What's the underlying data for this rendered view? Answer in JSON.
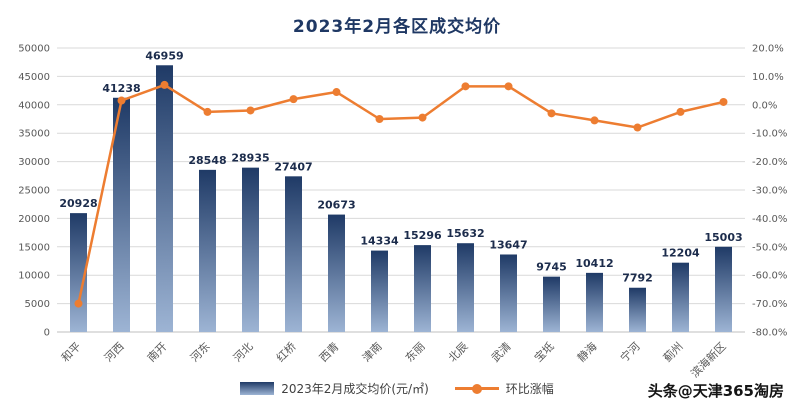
{
  "watermark": {
    "text": "头条@天津365淘房"
  },
  "chart_data": {
    "type": "bar",
    "combo": true,
    "title": "2023年2月各区成交均价",
    "categories": [
      "和平",
      "河西",
      "南开",
      "河东",
      "河北",
      "红桥",
      "西青",
      "津南",
      "东丽",
      "北辰",
      "武清",
      "宝坻",
      "静海",
      "宁河",
      "蓟州",
      "滨海新区"
    ],
    "series": [
      {
        "name": "2023年2月成交均价(元/㎡)",
        "type": "bar",
        "axis": "left",
        "values": [
          20928,
          41238,
          46959,
          28548,
          28935,
          27407,
          20673,
          14334,
          15296,
          15632,
          13647,
          9745,
          10412,
          7792,
          12204,
          15003
        ]
      },
      {
        "name": "环比涨幅",
        "type": "line",
        "axis": "right",
        "values": [
          -70,
          1.5,
          7,
          -2.5,
          -2,
          2,
          4.5,
          -5,
          -4.5,
          6.5,
          6.5,
          -3,
          -5.5,
          -8,
          -2.5,
          1
        ]
      }
    ],
    "left_axis": {
      "min": 0,
      "max": 50000,
      "step": 5000
    },
    "right_axis": {
      "min": -80,
      "max": 20,
      "step": 10,
      "format": "percent",
      "decimals": 1
    },
    "grid": true,
    "legend_position": "bottom",
    "colors": {
      "bar_top": "#1f3a66",
      "bar_bottom": "#9db4d4",
      "line": "#ed7d31",
      "grid": "#d9d9d9",
      "axis_line": "#bfbfbf",
      "title": "#1f3864",
      "axis_text": "#595959",
      "value_label": "#1c2c4c"
    }
  }
}
